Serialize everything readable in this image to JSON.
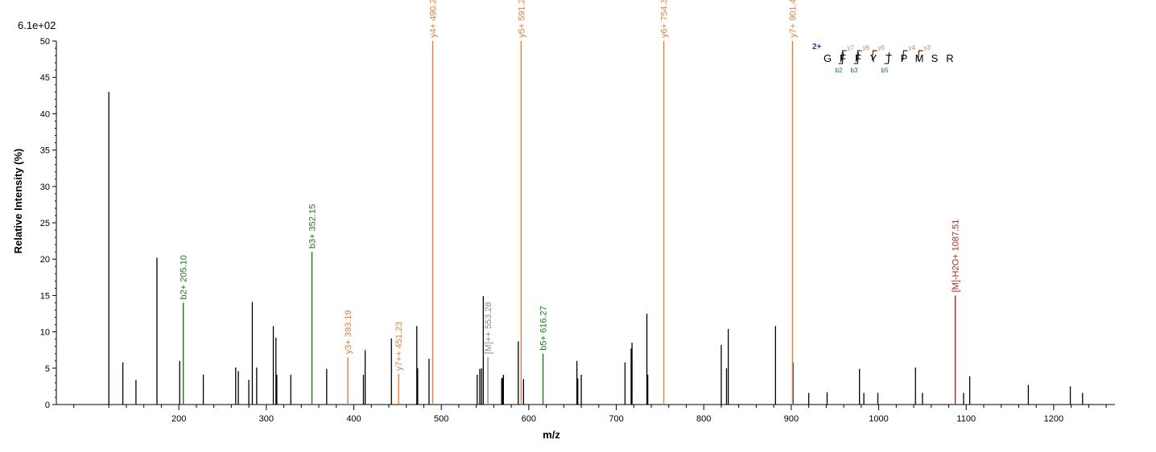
{
  "chart_data": {
    "type": "bar",
    "scale_label": "6.1e+02",
    "xlabel": "m/z",
    "ylabel": "Relative   Intensity (%)",
    "xlim": [
      60,
      1270
    ],
    "ylim": [
      0,
      50
    ],
    "x_ticks": [
      200,
      300,
      400,
      500,
      600,
      700,
      800,
      900,
      1000,
      1100,
      1200
    ],
    "y_ticks": [
      0,
      5,
      10,
      15,
      20,
      25,
      30,
      35,
      40,
      45,
      50
    ],
    "colors": {
      "y_ion": "#e07f3c",
      "b_ion": "#1a7a1a",
      "precursor": "#888888",
      "water_loss": "#b22222",
      "unannotated": "#000000"
    },
    "annotated_peaks": [
      {
        "mz": 205.1,
        "intensity": 14,
        "label": "b2+ 205.10",
        "ion_type": "b"
      },
      {
        "mz": 352.15,
        "intensity": 21,
        "label": "b3+ 352.15",
        "ion_type": "b"
      },
      {
        "mz": 393.19,
        "intensity": 6.5,
        "label": "y3+ 393.19",
        "ion_type": "y"
      },
      {
        "mz": 451.23,
        "intensity": 4.2,
        "label": "y7++ 451.23",
        "ion_type": "y"
      },
      {
        "mz": 490.24,
        "intensity": 50,
        "label": "y4+ 490.24",
        "ion_type": "y"
      },
      {
        "mz": 553.28,
        "intensity": 6.5,
        "label": "[M]++ 553.28",
        "ion_type": "precursor"
      },
      {
        "mz": 591.28,
        "intensity": 50,
        "label": "y5+ 591.28",
        "ion_type": "y"
      },
      {
        "mz": 616.27,
        "intensity": 7,
        "label": "b5+ 616.27",
        "ion_type": "b"
      },
      {
        "mz": 754.36,
        "intensity": 50,
        "label": "y6+ 754.36",
        "ion_type": "y"
      },
      {
        "mz": 901.43,
        "intensity": 50,
        "label": "y7+ 901.43",
        "ion_type": "y"
      },
      {
        "mz": 1087.51,
        "intensity": 15,
        "label": "[M]-H2O+ 1087.51",
        "ion_type": "water_loss"
      }
    ],
    "unannotated_peaks": [
      {
        "mz": 120,
        "intensity": 43
      },
      {
        "mz": 136,
        "intensity": 5.8
      },
      {
        "mz": 151,
        "intensity": 3.4
      },
      {
        "mz": 175,
        "intensity": 20.2
      },
      {
        "mz": 201,
        "intensity": 6
      },
      {
        "mz": 228,
        "intensity": 4.1
      },
      {
        "mz": 265,
        "intensity": 5.1
      },
      {
        "mz": 268,
        "intensity": 4.6
      },
      {
        "mz": 280,
        "intensity": 3.4
      },
      {
        "mz": 284,
        "intensity": 14.1
      },
      {
        "mz": 289,
        "intensity": 5.1
      },
      {
        "mz": 308,
        "intensity": 10.8
      },
      {
        "mz": 311,
        "intensity": 9.2
      },
      {
        "mz": 312,
        "intensity": 4.1
      },
      {
        "mz": 328,
        "intensity": 4.1
      },
      {
        "mz": 369,
        "intensity": 4.9
      },
      {
        "mz": 411,
        "intensity": 4.1
      },
      {
        "mz": 413,
        "intensity": 7.5
      },
      {
        "mz": 443,
        "intensity": 9.1
      },
      {
        "mz": 472,
        "intensity": 10.8
      },
      {
        "mz": 473,
        "intensity": 5
      },
      {
        "mz": 486,
        "intensity": 6.3
      },
      {
        "mz": 541,
        "intensity": 4.1
      },
      {
        "mz": 544,
        "intensity": 4.9
      },
      {
        "mz": 546,
        "intensity": 5
      },
      {
        "mz": 548,
        "intensity": 14.9
      },
      {
        "mz": 569,
        "intensity": 3.6
      },
      {
        "mz": 570,
        "intensity": 3.7
      },
      {
        "mz": 571,
        "intensity": 4.1
      },
      {
        "mz": 588,
        "intensity": 8.7
      },
      {
        "mz": 594,
        "intensity": 3.5
      },
      {
        "mz": 655,
        "intensity": 6
      },
      {
        "mz": 656,
        "intensity": 3.6
      },
      {
        "mz": 660,
        "intensity": 4.1
      },
      {
        "mz": 710,
        "intensity": 5.8
      },
      {
        "mz": 717,
        "intensity": 7.7
      },
      {
        "mz": 718,
        "intensity": 8.5
      },
      {
        "mz": 735,
        "intensity": 12.5
      },
      {
        "mz": 736,
        "intensity": 4.1
      },
      {
        "mz": 820,
        "intensity": 8.2
      },
      {
        "mz": 826,
        "intensity": 5
      },
      {
        "mz": 828,
        "intensity": 10.4
      },
      {
        "mz": 882,
        "intensity": 10.8
      },
      {
        "mz": 902,
        "intensity": 5.8
      },
      {
        "mz": 920,
        "intensity": 1.6
      },
      {
        "mz": 941,
        "intensity": 1.7
      },
      {
        "mz": 978,
        "intensity": 4.9
      },
      {
        "mz": 983,
        "intensity": 1.6
      },
      {
        "mz": 999,
        "intensity": 1.6
      },
      {
        "mz": 1042,
        "intensity": 5.1
      },
      {
        "mz": 1050,
        "intensity": 1.6
      },
      {
        "mz": 1097,
        "intensity": 1.6
      },
      {
        "mz": 1104,
        "intensity": 3.9
      },
      {
        "mz": 1171,
        "intensity": 2.7
      },
      {
        "mz": 1219,
        "intensity": 2.5
      },
      {
        "mz": 1233,
        "intensity": 1.6
      }
    ],
    "sequence": {
      "charge": "2+",
      "residues": [
        "G",
        "F",
        "F",
        "Y",
        "T",
        "P",
        "M",
        "S",
        "R"
      ],
      "y_ions": [
        {
          "label": "y7",
          "after_residue": 1
        },
        {
          "label": "y6",
          "after_residue": 2
        },
        {
          "label": "y5",
          "after_residue": 3
        },
        {
          "label": "y4",
          "after_residue": 5
        },
        {
          "label": "y3",
          "after_residue": 6
        }
      ],
      "b_ions": [
        {
          "label": "b2",
          "after_residue": 1
        },
        {
          "label": "b3",
          "after_residue": 2
        },
        {
          "label": "b5",
          "after_residue": 4
        }
      ]
    }
  }
}
